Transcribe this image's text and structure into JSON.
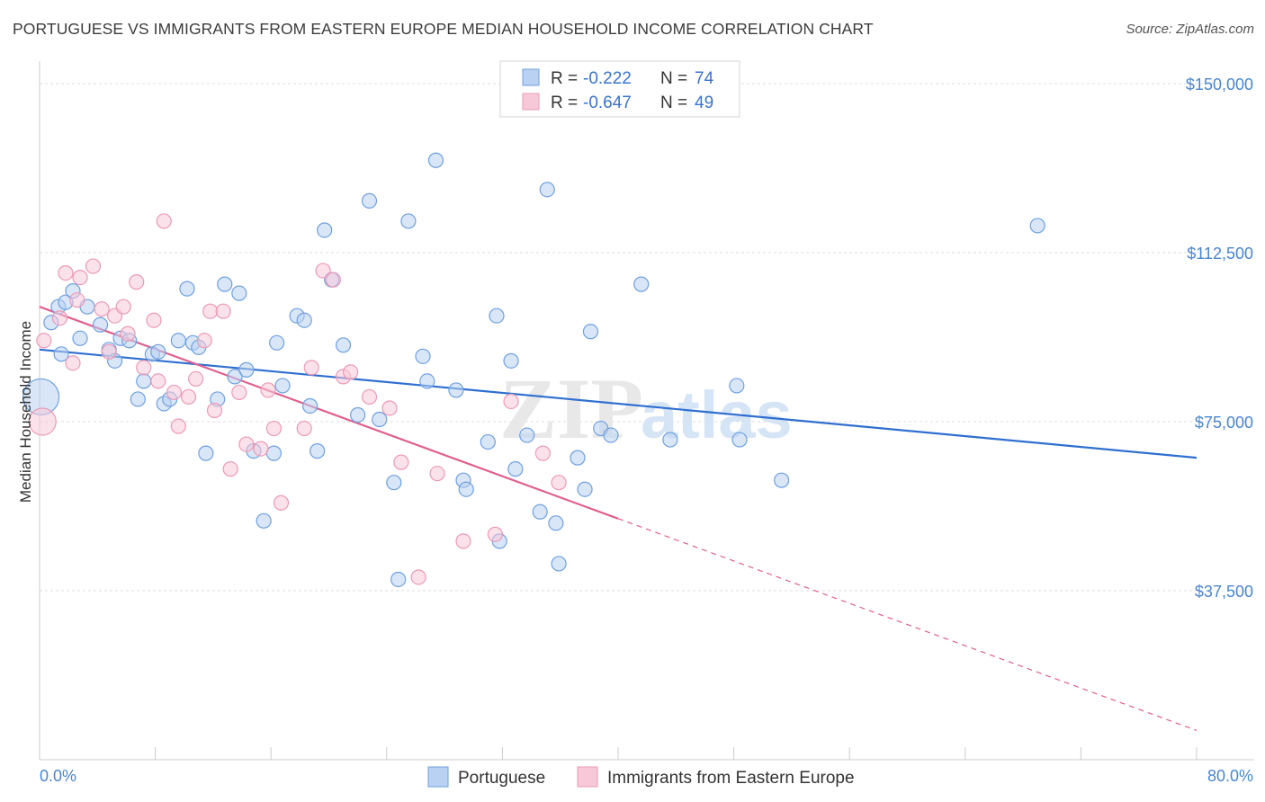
{
  "title": "PORTUGUESE VS IMMIGRANTS FROM EASTERN EUROPE MEDIAN HOUSEHOLD INCOME CORRELATION CHART",
  "source": "Source: ZipAtlas.com",
  "watermark": {
    "zip": "ZIP",
    "atlas": "atlas"
  },
  "chart_data": {
    "type": "scatter",
    "ylabel": "Median Household Income",
    "xlim": [
      0,
      80
    ],
    "ylim": [
      0,
      153000
    ],
    "x_tick_labels": [
      "0.0%",
      "80.0%"
    ],
    "y_ticks": [
      {
        "value": 150000,
        "label": "$150,000"
      },
      {
        "value": 112500,
        "label": "$112,500"
      },
      {
        "value": 75000,
        "label": "$75,000"
      },
      {
        "value": 37500,
        "label": "$37,500"
      }
    ],
    "grid": true,
    "legend_position": "top-center",
    "stats": [
      {
        "r_label": "R =",
        "r": "-0.222",
        "n_label": "N =",
        "n": "74"
      },
      {
        "r_label": "R =",
        "r": "-0.647",
        "n_label": "N =",
        "n": "49"
      }
    ],
    "series": [
      {
        "name": "Portuguese",
        "color": "#6fa0e0",
        "fill": "#b9d2f3",
        "line_color": "#2f6fd0",
        "trend": {
          "x0": 0,
          "y0": 91000,
          "x1": 80,
          "y1": 67000
        },
        "points": [
          [
            0.8,
            97000
          ],
          [
            1.3,
            100500
          ],
          [
            1.5,
            90000
          ],
          [
            1.8,
            101500
          ],
          [
            2.3,
            104000
          ],
          [
            2.8,
            93500
          ],
          [
            3.3,
            100500
          ],
          [
            4.2,
            96500
          ],
          [
            4.8,
            91000
          ],
          [
            5.2,
            88500
          ],
          [
            5.6,
            93500
          ],
          [
            6.2,
            93000
          ],
          [
            6.8,
            80000
          ],
          [
            7.2,
            84000
          ],
          [
            7.8,
            90000
          ],
          [
            8.2,
            90500
          ],
          [
            8.6,
            79000
          ],
          [
            9.0,
            80000
          ],
          [
            9.6,
            93000
          ],
          [
            10.2,
            104500
          ],
          [
            10.6,
            92500
          ],
          [
            11.0,
            91500
          ],
          [
            11.5,
            68000
          ],
          [
            12.3,
            80000
          ],
          [
            12.8,
            105500
          ],
          [
            13.5,
            85000
          ],
          [
            13.8,
            103500
          ],
          [
            14.3,
            86500
          ],
          [
            14.8,
            68500
          ],
          [
            15.5,
            53000
          ],
          [
            16.2,
            68000
          ],
          [
            16.4,
            92500
          ],
          [
            16.8,
            83000
          ],
          [
            17.8,
            98500
          ],
          [
            18.3,
            97500
          ],
          [
            18.7,
            78500
          ],
          [
            19.2,
            68500
          ],
          [
            19.7,
            117500
          ],
          [
            20.2,
            106500
          ],
          [
            21.0,
            92000
          ],
          [
            22.0,
            76500
          ],
          [
            22.8,
            124000
          ],
          [
            23.5,
            75500
          ],
          [
            24.5,
            61500
          ],
          [
            24.8,
            40000
          ],
          [
            25.5,
            119500
          ],
          [
            26.5,
            89500
          ],
          [
            26.8,
            84000
          ],
          [
            27.4,
            133000
          ],
          [
            28.8,
            82000
          ],
          [
            29.3,
            62000
          ],
          [
            29.5,
            60000
          ],
          [
            31.0,
            70500
          ],
          [
            31.6,
            98500
          ],
          [
            31.8,
            48500
          ],
          [
            32.6,
            88500
          ],
          [
            32.9,
            64500
          ],
          [
            33.7,
            72000
          ],
          [
            34.6,
            55000
          ],
          [
            35.1,
            126500
          ],
          [
            35.7,
            52500
          ],
          [
            35.9,
            43500
          ],
          [
            37.2,
            67000
          ],
          [
            37.7,
            60000
          ],
          [
            38.1,
            95000
          ],
          [
            38.8,
            73500
          ],
          [
            39.5,
            72000
          ],
          [
            41.6,
            105500
          ],
          [
            43.6,
            71000
          ],
          [
            48.2,
            83000
          ],
          [
            48.4,
            71000
          ],
          [
            51.3,
            62000
          ],
          [
            69.0,
            118500
          ],
          [
            0.1,
            80500
          ]
        ],
        "sizes": {
          "default": 8,
          "large": 20,
          "large_index": 73
        }
      },
      {
        "name": "Immigrants from Eastern Europe",
        "color": "#eb9ab6",
        "fill": "#f7c9d8",
        "line_color": "#e0608e",
        "trend": {
          "x0": 0,
          "y0": 100500,
          "x1": 40,
          "y1": 53500,
          "dash_x1": 80,
          "dash_y1": 6500
        },
        "points": [
          [
            0.3,
            93000
          ],
          [
            1.4,
            98000
          ],
          [
            1.8,
            108000
          ],
          [
            2.3,
            88000
          ],
          [
            2.6,
            102000
          ],
          [
            2.8,
            107000
          ],
          [
            3.7,
            109500
          ],
          [
            4.3,
            100000
          ],
          [
            4.8,
            90500
          ],
          [
            5.2,
            98500
          ],
          [
            5.8,
            100500
          ],
          [
            6.1,
            94500
          ],
          [
            6.7,
            106000
          ],
          [
            7.2,
            87000
          ],
          [
            7.9,
            97500
          ],
          [
            8.2,
            84000
          ],
          [
            8.6,
            119500
          ],
          [
            9.3,
            81500
          ],
          [
            9.6,
            74000
          ],
          [
            10.3,
            80500
          ],
          [
            10.8,
            84500
          ],
          [
            11.4,
            93000
          ],
          [
            11.8,
            99500
          ],
          [
            12.1,
            77500
          ],
          [
            12.7,
            99500
          ],
          [
            13.2,
            64500
          ],
          [
            13.8,
            81500
          ],
          [
            14.3,
            70000
          ],
          [
            15.3,
            69000
          ],
          [
            15.8,
            82000
          ],
          [
            16.2,
            73500
          ],
          [
            16.7,
            57000
          ],
          [
            18.3,
            73500
          ],
          [
            18.8,
            87000
          ],
          [
            19.6,
            108500
          ],
          [
            20.3,
            106500
          ],
          [
            21.0,
            85000
          ],
          [
            21.5,
            86000
          ],
          [
            22.8,
            80500
          ],
          [
            24.2,
            78000
          ],
          [
            25.0,
            66000
          ],
          [
            26.2,
            40500
          ],
          [
            27.5,
            63500
          ],
          [
            29.3,
            48500
          ],
          [
            31.5,
            50000
          ],
          [
            32.6,
            79500
          ],
          [
            34.8,
            68000
          ],
          [
            35.9,
            61500
          ],
          [
            0.2,
            75000
          ]
        ],
        "sizes": {
          "default": 8,
          "large": 15,
          "large_index": 48
        }
      }
    ]
  }
}
